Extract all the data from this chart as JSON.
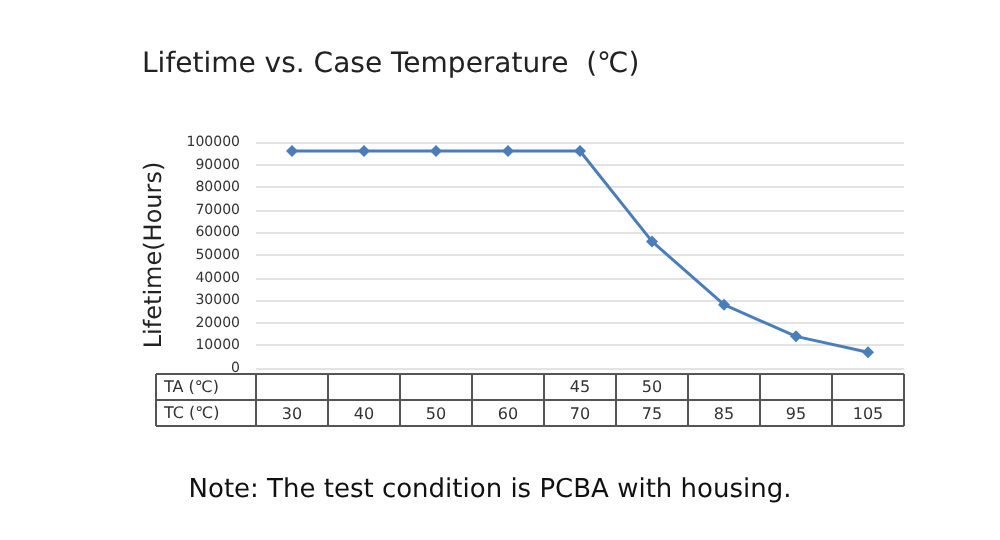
{
  "chart_data": {
    "type": "line",
    "title": "Lifetime vs. Case Temperature  (℃)",
    "ylabel": "Lifetime(Hours)",
    "categories": [
      "30",
      "40",
      "50",
      "60",
      "70",
      "75",
      "85",
      "95",
      "105"
    ],
    "series": [
      {
        "color": "#4a7ebb",
        "values": [
          96000,
          96000,
          96000,
          96000,
          96000,
          56000,
          28000,
          14000,
          7000
        ]
      }
    ],
    "ylim": [
      0,
      100000
    ],
    "yticks": [
      0,
      10000,
      20000,
      30000,
      40000,
      50000,
      60000,
      70000,
      80000,
      90000,
      100000
    ],
    "grid": "y",
    "marker": "diamond",
    "line_style": "solid",
    "annotations": [
      "TA (℃)",
      "TC (℃)",
      "45",
      "50",
      "Note: The test condition is PCBA with housing."
    ]
  }
}
